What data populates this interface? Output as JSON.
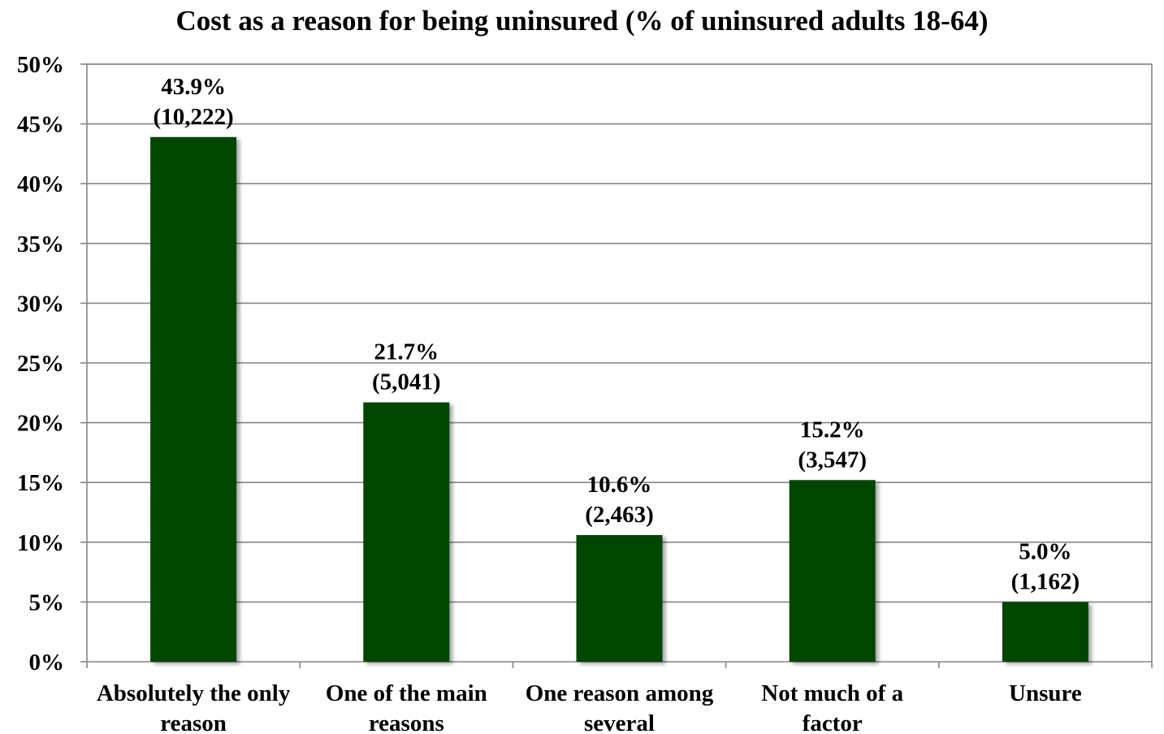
{
  "chart_data": {
    "type": "bar",
    "title": "Cost as a reason for being uninsured (% of uninsured adults 18-64)",
    "xlabel": "",
    "ylabel": "",
    "categories": [
      [
        "Absolutely the only",
        "reason"
      ],
      [
        "One of the main",
        "reasons"
      ],
      [
        "One reason among",
        "several"
      ],
      [
        "Not much of a",
        "factor"
      ],
      [
        "Unsure"
      ]
    ],
    "values": [
      43.9,
      21.7,
      10.6,
      15.2,
      5.0
    ],
    "data_labels": [
      [
        "43.9%",
        "(10,222)"
      ],
      [
        "21.7%",
        "(5,041)"
      ],
      [
        "10.6%",
        "(2,463)"
      ],
      [
        "15.2%",
        "(3,547)"
      ],
      [
        "5.0%",
        "(1,162)"
      ]
    ],
    "ylim": [
      0,
      50
    ],
    "y_ticks": [
      0,
      5,
      10,
      15,
      20,
      25,
      30,
      35,
      40,
      45,
      50
    ],
    "y_tick_labels": [
      "0%",
      "5%",
      "10%",
      "15%",
      "20%",
      "25%",
      "30%",
      "35%",
      "40%",
      "45%",
      "50%"
    ],
    "grid": true,
    "legend": "none",
    "colors": {
      "bar": "#004400",
      "grid": "#868686",
      "axis": "#868686",
      "text": "#000000"
    }
  }
}
